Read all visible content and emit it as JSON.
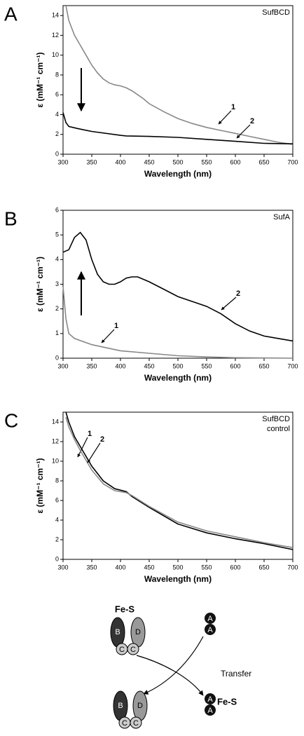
{
  "chart_data": [
    {
      "type": "line",
      "panel": "A",
      "title": "SufBCD",
      "x_label": "Wavelength (nm)",
      "y_label": "ε (mM⁻¹ cm⁻¹)",
      "xlim": [
        300,
        700
      ],
      "xticks": [
        300,
        350,
        400,
        450,
        500,
        550,
        600,
        650,
        700
      ],
      "ylim": [
        0,
        15
      ],
      "yticks": [
        0,
        2,
        4,
        6,
        8,
        10,
        12,
        14
      ],
      "series": [
        {
          "name": "1",
          "color": "#888888",
          "x": [
            305,
            310,
            320,
            330,
            340,
            350,
            360,
            370,
            380,
            390,
            400,
            410,
            420,
            430,
            440,
            450,
            475,
            500,
            525,
            550,
            575,
            600,
            625,
            650,
            675,
            700
          ],
          "values": [
            15,
            13.5,
            12,
            11,
            10,
            9,
            8.2,
            7.6,
            7.2,
            7.0,
            6.9,
            6.7,
            6.4,
            6.0,
            5.6,
            5.1,
            4.3,
            3.6,
            3.1,
            2.7,
            2.4,
            2.1,
            1.8,
            1.5,
            1.2,
            1.0
          ]
        },
        {
          "name": "2",
          "color": "#000000",
          "x": [
            300,
            305,
            310,
            325,
            350,
            400,
            410,
            450,
            500,
            550,
            600,
            650,
            700
          ],
          "values": [
            4.2,
            3.2,
            2.8,
            2.6,
            2.3,
            1.9,
            1.85,
            1.8,
            1.7,
            1.5,
            1.3,
            1.1,
            1.05
          ]
        }
      ]
    },
    {
      "type": "line",
      "panel": "B",
      "title": "SufA",
      "x_label": "Wavelength (nm)",
      "y_label": "ε (mM⁻¹ cm⁻¹)",
      "xlim": [
        300,
        700
      ],
      "xticks": [
        300,
        350,
        400,
        450,
        500,
        550,
        600,
        650,
        700
      ],
      "ylim": [
        0,
        6
      ],
      "yticks": [
        0,
        1,
        2,
        3,
        4,
        5,
        6
      ],
      "series": [
        {
          "name": "1",
          "color": "#888888",
          "x": [
            300,
            305,
            310,
            320,
            350,
            400,
            450,
            500,
            550,
            600,
            700
          ],
          "values": [
            2.9,
            1.6,
            1.0,
            0.8,
            0.55,
            0.3,
            0.2,
            0.1,
            0.05,
            0.02,
            0
          ]
        },
        {
          "name": "2",
          "color": "#000000",
          "x": [
            300,
            310,
            320,
            330,
            340,
            350,
            360,
            370,
            380,
            390,
            400,
            410,
            420,
            430,
            450,
            475,
            500,
            525,
            550,
            575,
            600,
            625,
            650,
            675,
            700
          ],
          "values": [
            4.3,
            4.4,
            4.9,
            5.1,
            4.8,
            4.0,
            3.4,
            3.1,
            3.0,
            3.0,
            3.1,
            3.25,
            3.3,
            3.3,
            3.1,
            2.8,
            2.5,
            2.3,
            2.1,
            1.8,
            1.4,
            1.1,
            0.9,
            0.8,
            0.7
          ]
        }
      ]
    },
    {
      "type": "line",
      "panel": "C",
      "title": "SufBCD",
      "subtitle": "control",
      "x_label": "Wavelength (nm)",
      "y_label": "ε (mM⁻¹ cm⁻¹)",
      "xlim": [
        300,
        700
      ],
      "xticks": [
        300,
        350,
        400,
        450,
        500,
        550,
        600,
        650,
        700
      ],
      "ylim": [
        0,
        15
      ],
      "yticks": [
        0,
        2,
        4,
        6,
        8,
        10,
        12,
        14
      ],
      "series": [
        {
          "name": "1",
          "color": "#000000",
          "x": [
            305,
            310,
            320,
            330,
            350,
            370,
            390,
            410,
            420,
            450,
            500,
            550,
            600,
            650,
            700
          ],
          "values": [
            15,
            14,
            12.5,
            11.5,
            9.5,
            8,
            7.2,
            6.9,
            6.4,
            5.3,
            3.6,
            2.7,
            2.1,
            1.6,
            1.0
          ]
        },
        {
          "name": "2",
          "color": "#888888",
          "x": [
            305,
            310,
            320,
            330,
            350,
            370,
            390,
            410,
            420,
            450,
            500,
            550,
            600,
            650,
            700
          ],
          "values": [
            14.5,
            13.5,
            12.2,
            11.1,
            9.1,
            7.7,
            7.0,
            6.8,
            6.5,
            5.4,
            3.8,
            2.9,
            2.3,
            1.7,
            1.2
          ]
        }
      ]
    }
  ],
  "diagram": {
    "complex_label": "Fe-S",
    "subunits": [
      "B",
      "C",
      "C",
      "D"
    ],
    "acceptor": [
      "A",
      "A"
    ],
    "arrow_label": "Transfer",
    "products_left": [
      "B",
      "C",
      "C",
      "D"
    ],
    "products_right": [
      "A",
      "A"
    ],
    "product_label": "Fe-S"
  }
}
